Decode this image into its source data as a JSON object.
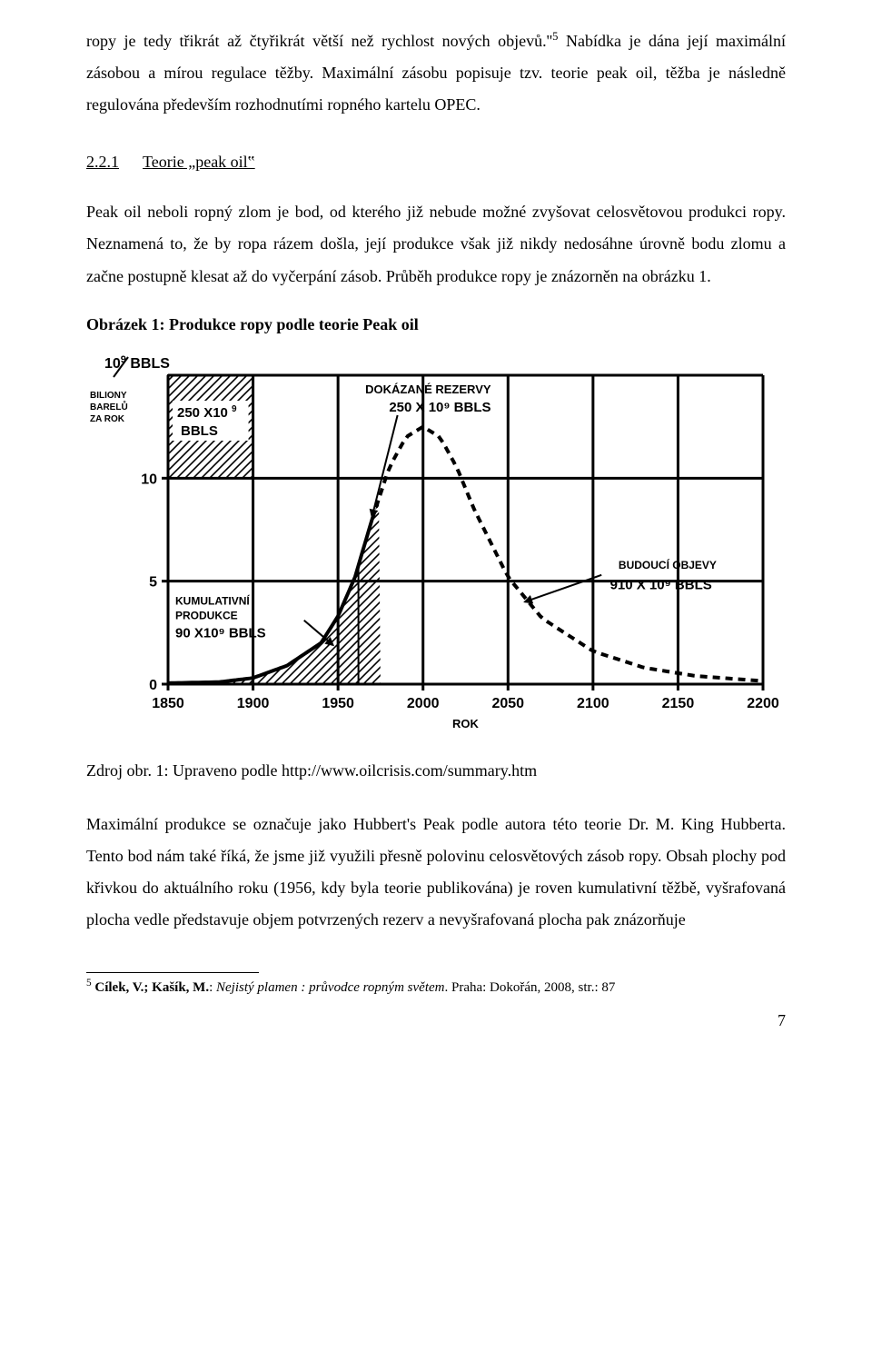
{
  "body": {
    "para1a": "ropy je tedy třikrát až čtyřikrát větší než rychlost nových objevů.''",
    "sup1": "5",
    "para1b": " Nabídka je dána její maximální zásobou a mírou regulace těžby. Maximální zásobu popisuje tzv. teorie peak oil, těžba je následně regulována především rozhodnutími ropného kartelu OPEC.",
    "heading_num": "2.2.1",
    "heading_title": "Teorie „peak oil‟",
    "para2": "Peak oil neboli ropný zlom je bod, od kterého již nebude možné zvyšovat celosvětovou produkci ropy. Neznamená to, že by ropa rázem došla, její produkce však již nikdy nedosáhne úrovně bodu zlomu a začne postupně klesat až do vyčerpání zásob. Průběh produkce ropy je znázorněn na obrázku 1.",
    "fig_title": "Obrázek 1: Produkce ropy podle teorie Peak oil",
    "source_line": "Zdroj obr. 1: Upraveno podle http://www.oilcrisis.com/summary.htm",
    "para3": "Maximální produkce se označuje jako Hubbert's Peak podle autora této teorie Dr. M. King Hubberta. Tento bod nám také říká, že jsme již využili přesně polovinu celosvětových zásob ropy. Obsah plochy pod křivkou do aktuálního roku (1956, kdy byla teorie publikována) je roven kumulativní těžbě, vyšrafovaná plocha vedle představuje objem potvrzených rezerv a nevyšrafovaná plocha pak znázorňuje"
  },
  "footnote": {
    "num": "5",
    "author": "Cílek, V.; Kašík, M.",
    "title_plain": ": ",
    "title_italic": "Nejistý plamen : průvodce ropným světem",
    "tail": ". Praha: Dokořán, 2008, str.: 87"
  },
  "page_number": "7",
  "chart": {
    "type": "line",
    "stroke": "#000000",
    "stroke_width_axes": 3,
    "stroke_width_grid": 3,
    "stroke_width_curve": 3,
    "background": "#ffffff",
    "text_color": "#000000",
    "font_family": "Arial, Helvetica, sans-serif",
    "title_fontsize": 14,
    "tick_fontsize": 16,
    "label_fontsize": 14,
    "y_unit_top": "10",
    "y_unit_sup": "9",
    "y_unit_tail": "BBLS",
    "y_side_label_1": "BILIONY",
    "y_side_label_2": "BARELŮ",
    "y_side_label_3": "ZA ROK",
    "y_ticks": [
      0,
      5,
      10
    ],
    "x_label": "ROK",
    "x_ticks": [
      1850,
      1900,
      1950,
      2000,
      2050,
      2100,
      2150,
      2200
    ],
    "xlim": [
      1850,
      2200
    ],
    "ylim": [
      0,
      15
    ],
    "cumulative_label_1": "KUMULATIVNÍ",
    "cumulative_label_2": "PRODUKCE",
    "cumulative_value": "90 X10⁹ BBLS",
    "proven_reserves_label": "DOKÁZANÉ REZERVY",
    "proven_reserves_value": "250 X 10⁹ BBLS",
    "proven_reserves_box": "250 X10⁹ BBLS",
    "future_discovery_label": "BUDOUCÍ OBJEVY",
    "future_discovery_value": "910 X 10⁹ BBLS",
    "hatch_pattern": "diagonal-lines",
    "dash_pattern": "8 6",
    "curve_points": [
      [
        1850,
        0.05
      ],
      [
        1880,
        0.1
      ],
      [
        1900,
        0.3
      ],
      [
        1920,
        0.9
      ],
      [
        1940,
        2.0
      ],
      [
        1950,
        3.3
      ],
      [
        1960,
        5.2
      ],
      [
        1970,
        8.0
      ],
      [
        1980,
        10.5
      ],
      [
        1990,
        12.0
      ],
      [
        2000,
        12.5
      ],
      [
        2010,
        12.0
      ],
      [
        2020,
        10.5
      ],
      [
        2030,
        8.5
      ],
      [
        2050,
        5.2
      ],
      [
        2070,
        3.2
      ],
      [
        2100,
        1.6
      ],
      [
        2130,
        0.8
      ],
      [
        2160,
        0.4
      ],
      [
        2200,
        0.15
      ]
    ],
    "solid_until_x": 1970,
    "hatch_cumulative_until_x": 1962,
    "hatch_proven_until_x": 1975
  }
}
